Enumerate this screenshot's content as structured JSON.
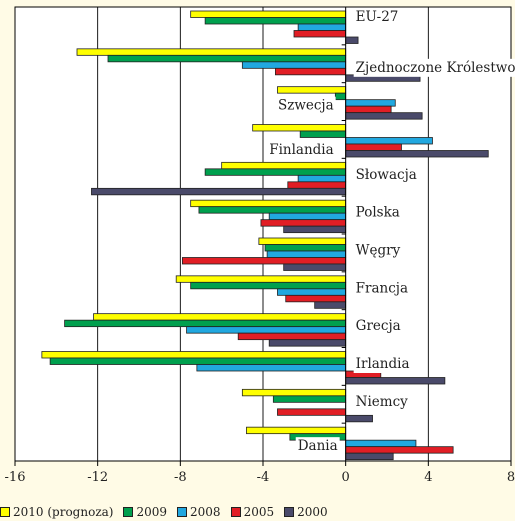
{
  "chart_data": {
    "type": "bar",
    "orientation": "horizontal",
    "categories": [
      "EU-27",
      "Zjednoczone Królestwo",
      "Szwecja",
      "Finlandia",
      "Słowacja",
      "Polska",
      "Węgry",
      "Francja",
      "Grecja",
      "Irlandia",
      "Niemcy",
      "Dania"
    ],
    "series": [
      {
        "name": "2010 (prognoza)",
        "color": "#ffff00",
        "values": [
          -7.5,
          -13.0,
          -3.3,
          -4.5,
          -6.0,
          -7.5,
          -4.2,
          -8.2,
          -12.2,
          -14.7,
          -5.0,
          -4.8
        ]
      },
      {
        "name": "2009",
        "color": "#00a04e",
        "values": [
          -6.8,
          -11.5,
          -0.5,
          -2.2,
          -6.8,
          -7.1,
          -3.9,
          -7.5,
          -13.6,
          -14.3,
          -3.5,
          -2.7
        ]
      },
      {
        "name": "2008",
        "color": "#21a8e0",
        "values": [
          -2.3,
          -5.0,
          2.4,
          4.2,
          -2.3,
          -3.7,
          -3.8,
          -3.3,
          -7.7,
          -7.2,
          0.0,
          3.4
        ]
      },
      {
        "name": "2005",
        "color": "#e11e25",
        "values": [
          -2.5,
          -3.4,
          2.2,
          2.7,
          -2.8,
          -4.1,
          -7.9,
          -2.9,
          -5.2,
          1.7,
          -3.3,
          5.2
        ]
      },
      {
        "name": "2000",
        "color": "#4a4a6a",
        "values": [
          0.6,
          3.6,
          3.7,
          6.9,
          -12.3,
          -3.0,
          -3.0,
          -1.5,
          -3.7,
          4.8,
          1.3,
          2.3
        ]
      }
    ],
    "xlim": [
      -16,
      8
    ],
    "xticks": [
      -16,
      -12,
      -8,
      -4,
      0,
      4,
      8
    ],
    "xticklabels": [
      "-16",
      "-12",
      "-8",
      "-4",
      "0",
      "4",
      "8"
    ],
    "grid": "vertical",
    "legend_position": "bottom"
  }
}
